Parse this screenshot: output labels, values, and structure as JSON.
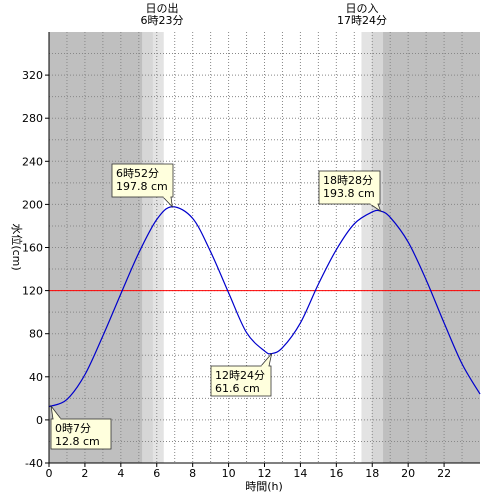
{
  "chart_data": {
    "type": "line",
    "xlabel": "時間(h)",
    "ylabel": "水位(cm)",
    "xlim": [
      0,
      24
    ],
    "ylim": [
      -40,
      360
    ],
    "xticks": [
      0,
      2,
      4,
      6,
      8,
      10,
      12,
      14,
      16,
      18,
      20,
      22
    ],
    "yticks": [
      -40,
      0,
      40,
      80,
      120,
      160,
      200,
      240,
      280,
      320
    ],
    "grid": true,
    "reference_line": {
      "y": 120,
      "color": "#ff0000"
    },
    "line_color": "#0000cc",
    "night_color": "#bfbfbf",
    "twilight_color": "#e3e3e3",
    "sunrise": {
      "label": "日の出",
      "time": "6時23分",
      "hour": 6.383
    },
    "sunset": {
      "label": "日の入",
      "time": "17時24分",
      "hour": 17.4
    },
    "series": [
      {
        "x": [
          0,
          0.117,
          1,
          2,
          3,
          4,
          5,
          6,
          6.867,
          8,
          9,
          10,
          11,
          12,
          12.4,
          13,
          14,
          15,
          16,
          17,
          18,
          18.467,
          19,
          20,
          21,
          22,
          23,
          24
        ],
        "values": [
          13,
          12.8,
          19,
          42,
          78,
          117,
          155,
          186,
          197.8,
          187,
          156,
          118,
          81,
          64,
          61.6,
          67,
          90,
          126,
          158,
          182,
          193,
          193.8,
          188,
          165,
          130,
          90,
          52,
          24
        ]
      }
    ],
    "annotations": [
      {
        "time": "6時52分",
        "value": "197.8 cm",
        "x": 6.867,
        "y": 197.8
      },
      {
        "time": "18時28分",
        "value": "193.8 cm",
        "x": 18.467,
        "y": 193.8
      },
      {
        "time": "12時24分",
        "value": "61.6 cm",
        "x": 12.4,
        "y": 61.6
      },
      {
        "time": "0時7分",
        "value": "12.8 cm",
        "x": 0.117,
        "y": 12.8
      }
    ]
  }
}
